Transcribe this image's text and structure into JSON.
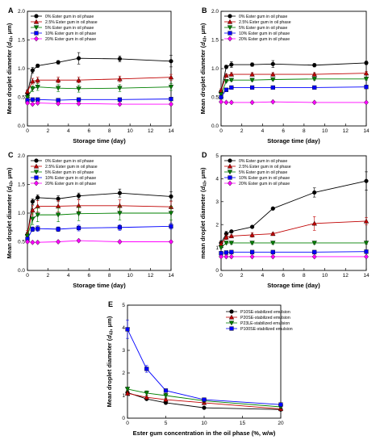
{
  "figure": {
    "panel_count": 5
  },
  "chart_data": [
    {
      "panel": "A",
      "type": "line",
      "xlabel": "Storage time (day)",
      "ylabel_main": "Mean droplet diameter (",
      "ylabel_sym": "d",
      "ylabel_sub": "43",
      "ylabel_tail": ", μm)",
      "xlim": [
        0,
        14
      ],
      "ylim": [
        0,
        2.0
      ],
      "xticks": [
        0,
        2,
        4,
        6,
        8,
        10,
        12,
        14
      ],
      "yticks": [
        0.0,
        0.5,
        1.0,
        1.5,
        2.0
      ],
      "ytick_labels": [
        "0.0",
        "0.5",
        "1.0",
        "1.5",
        "2.0"
      ],
      "legend_position": "top-left",
      "x": [
        0,
        0.5,
        1,
        3,
        5,
        9,
        14
      ],
      "series": [
        {
          "name": "0% Ester gum in oil phase",
          "color": "#000000",
          "marker": "circle",
          "values": [
            0.57,
            0.97,
            1.05,
            1.11,
            1.18,
            1.17,
            1.13
          ],
          "errors": [
            0.05,
            0.05,
            0.03,
            0.03,
            0.1,
            0.05,
            0.1
          ]
        },
        {
          "name": "2.5% Ester gum in oil phase",
          "color": "#c00000",
          "marker": "triangle-up",
          "values": [
            0.6,
            0.78,
            0.8,
            0.8,
            0.8,
            0.82,
            0.85
          ],
          "errors": [
            0.03,
            0.05,
            0.05,
            0.05,
            0.05,
            0.05,
            0.05
          ]
        },
        {
          "name": "5% Ester gum in oil phase",
          "color": "#008000",
          "marker": "triangle-down",
          "values": [
            0.5,
            0.65,
            0.68,
            0.66,
            0.65,
            0.66,
            0.68
          ],
          "errors": [
            0.03,
            0.05,
            0.06,
            0.06,
            0.06,
            0.06,
            0.06
          ]
        },
        {
          "name": "10% Ester gum in oil phase",
          "color": "#0000ff",
          "marker": "square",
          "values": [
            0.45,
            0.46,
            0.46,
            0.45,
            0.46,
            0.46,
            0.47
          ],
          "errors": [
            0.02,
            0.02,
            0.02,
            0.02,
            0.02,
            0.02,
            0.02
          ]
        },
        {
          "name": "20% Ester gum in oil phase",
          "color": "#ff00ff",
          "marker": "diamond",
          "values": [
            0.4,
            0.38,
            0.4,
            0.39,
            0.39,
            0.38,
            0.38
          ],
          "errors": [
            0.02,
            0.02,
            0.02,
            0.02,
            0.02,
            0.02,
            0.02
          ]
        }
      ]
    },
    {
      "panel": "B",
      "type": "line",
      "xlabel": "Storage time (day)",
      "ylabel_main": "Mean droplet diameter (",
      "ylabel_sym": "d",
      "ylabel_sub": "43",
      "ylabel_tail": ", μm)",
      "xlim": [
        0,
        14
      ],
      "ylim": [
        0,
        2.0
      ],
      "xticks": [
        0,
        2,
        4,
        6,
        8,
        10,
        12,
        14
      ],
      "yticks": [
        0.0,
        0.5,
        1.0,
        1.5,
        2.0
      ],
      "ytick_labels": [
        "0.0",
        "0.5",
        "1.0",
        "1.5",
        "2.0"
      ],
      "legend_position": "top-left",
      "x": [
        0,
        0.5,
        1,
        3,
        5,
        9,
        14
      ],
      "series": [
        {
          "name": "0% Ester gum in oil phase",
          "color": "#000000",
          "marker": "circle",
          "values": [
            0.6,
            1.03,
            1.07,
            1.07,
            1.08,
            1.06,
            1.1
          ],
          "errors": [
            0.03,
            0.03,
            0.05,
            0.03,
            0.06,
            0.03,
            0.03
          ]
        },
        {
          "name": "2.5% Ester gum in oil phase",
          "color": "#c00000",
          "marker": "triangle-up",
          "values": [
            0.62,
            0.88,
            0.9,
            0.9,
            0.9,
            0.9,
            0.92
          ],
          "errors": [
            0.03,
            0.03,
            0.03,
            0.03,
            0.03,
            0.03,
            0.03
          ]
        },
        {
          "name": "5% Ester gum in oil phase",
          "color": "#008000",
          "marker": "triangle-down",
          "values": [
            0.55,
            0.78,
            0.8,
            0.8,
            0.81,
            0.82,
            0.82
          ],
          "errors": [
            0.02,
            0.02,
            0.02,
            0.02,
            0.02,
            0.02,
            0.02
          ]
        },
        {
          "name": "10% Ester gum in oil phase",
          "color": "#0000ff",
          "marker": "square",
          "values": [
            0.5,
            0.63,
            0.67,
            0.67,
            0.67,
            0.67,
            0.68
          ],
          "errors": [
            0.02,
            0.02,
            0.02,
            0.02,
            0.02,
            0.02,
            0.02
          ]
        },
        {
          "name": "20% Ester gum in oil phase",
          "color": "#ff00ff",
          "marker": "diamond",
          "values": [
            0.42,
            0.41,
            0.41,
            0.41,
            0.42,
            0.41,
            0.41
          ],
          "errors": [
            0.01,
            0.01,
            0.01,
            0.01,
            0.01,
            0.01,
            0.01
          ]
        }
      ]
    },
    {
      "panel": "C",
      "type": "line",
      "xlabel": "Storage time (day)",
      "ylabel_main": "Mean droplet diameter (",
      "ylabel_sym": "d",
      "ylabel_sub": "43",
      "ylabel_tail": ", μm)",
      "xlim": [
        0,
        14
      ],
      "ylim": [
        0,
        2.0
      ],
      "xticks": [
        0,
        2,
        4,
        6,
        8,
        10,
        12,
        14
      ],
      "yticks": [
        0.0,
        0.5,
        1.0,
        1.5,
        2.0
      ],
      "ytick_labels": [
        "0.0",
        "0.5",
        "1.0",
        "1.5",
        "2.0"
      ],
      "legend_position": "top-left",
      "x": [
        0,
        0.5,
        1,
        3,
        5,
        9,
        14
      ],
      "series": [
        {
          "name": "0% Ester gum in oil phase",
          "color": "#000000",
          "marker": "circle",
          "values": [
            0.62,
            1.2,
            1.27,
            1.25,
            1.3,
            1.35,
            1.29
          ],
          "errors": [
            0.05,
            0.05,
            0.05,
            0.05,
            0.05,
            0.07,
            0.08
          ]
        },
        {
          "name": "2.5% Ester gum in oil phase",
          "color": "#c00000",
          "marker": "triangle-up",
          "values": [
            0.65,
            1.05,
            1.12,
            1.12,
            1.13,
            1.13,
            1.11
          ],
          "errors": [
            0.05,
            0.08,
            0.1,
            0.1,
            0.1,
            0.1,
            0.1
          ]
        },
        {
          "name": "5% Ester gum in oil phase",
          "color": "#008000",
          "marker": "triangle-down",
          "values": [
            0.6,
            0.9,
            0.97,
            0.97,
            0.99,
            1.0,
            1.0
          ],
          "errors": [
            0.05,
            0.1,
            0.12,
            0.12,
            0.12,
            0.12,
            0.12
          ]
        },
        {
          "name": "10% Ester gum in oil phase",
          "color": "#0000ff",
          "marker": "square",
          "values": [
            0.55,
            0.72,
            0.73,
            0.72,
            0.74,
            0.75,
            0.77
          ],
          "errors": [
            0.03,
            0.04,
            0.05,
            0.04,
            0.05,
            0.05,
            0.05
          ]
        },
        {
          "name": "20% Ester gum in oil phase",
          "color": "#ff00ff",
          "marker": "diamond",
          "values": [
            0.5,
            0.49,
            0.49,
            0.5,
            0.52,
            0.5,
            0.5
          ],
          "errors": [
            0.02,
            0.02,
            0.02,
            0.02,
            0.02,
            0.02,
            0.02
          ]
        }
      ]
    },
    {
      "panel": "D",
      "type": "line",
      "xlabel": "Storage time (day)",
      "ylabel_main": "mean droplet diameter (",
      "ylabel_sym": "d",
      "ylabel_sub": "43",
      "ylabel_tail": ", μm)",
      "xlim": [
        0,
        14
      ],
      "ylim": [
        0,
        5
      ],
      "xticks": [
        0,
        2,
        4,
        6,
        8,
        10,
        12,
        14
      ],
      "yticks": [
        0,
        1,
        2,
        3,
        4,
        5
      ],
      "ytick_labels": [
        "0",
        "1",
        "2",
        "3",
        "4",
        "5"
      ],
      "legend_position": "top-left",
      "x": [
        0,
        0.5,
        1,
        3,
        5,
        9,
        14
      ],
      "series": [
        {
          "name": "0% Ester gum in oil phase",
          "color": "#000000",
          "marker": "circle",
          "values": [
            1.2,
            1.6,
            1.7,
            1.9,
            2.7,
            3.4,
            3.9
          ],
          "errors": [
            0.1,
            0.1,
            0.05,
            0.05,
            0.05,
            0.2,
            0.4
          ]
        },
        {
          "name": "2.5% Ester gum in oil phase",
          "color": "#c00000",
          "marker": "triangle-up",
          "values": [
            1.15,
            1.45,
            1.5,
            1.55,
            1.6,
            2.05,
            2.15
          ],
          "errors": [
            0.1,
            0.1,
            0.05,
            0.1,
            0.05,
            0.3,
            0.15
          ]
        },
        {
          "name": "5% Ester gum in oil phase",
          "color": "#008000",
          "marker": "triangle-down",
          "values": [
            1.0,
            1.2,
            1.2,
            1.2,
            1.2,
            1.2,
            1.2
          ],
          "errors": [
            0.05,
            0.05,
            0.05,
            0.05,
            0.05,
            0.05,
            0.05
          ]
        },
        {
          "name": "10% Ester gum in oil phase",
          "color": "#0000ff",
          "marker": "square",
          "values": [
            0.75,
            0.78,
            0.8,
            0.8,
            0.8,
            0.8,
            0.82
          ],
          "errors": [
            0.03,
            0.03,
            0.03,
            0.03,
            0.03,
            0.03,
            0.03
          ]
        },
        {
          "name": "20% Ester gum in oil phase",
          "color": "#ff00ff",
          "marker": "diamond",
          "values": [
            0.6,
            0.6,
            0.6,
            0.6,
            0.6,
            0.6,
            0.6
          ],
          "errors": [
            0.02,
            0.02,
            0.02,
            0.02,
            0.02,
            0.02,
            0.02
          ]
        }
      ]
    },
    {
      "panel": "E",
      "type": "line",
      "xlabel": "Ester gum concentration in the oil phase (%, w/w)",
      "ylabel_main": "Mean droplet diameter (",
      "ylabel_sym": "d",
      "ylabel_sub": "43",
      "ylabel_tail": ", μm)",
      "xlim": [
        0,
        20
      ],
      "ylim": [
        0,
        5
      ],
      "xticks": [
        0,
        5,
        10,
        15,
        20
      ],
      "yticks": [
        0,
        1,
        2,
        3,
        4,
        5
      ],
      "ytick_labels": [
        "0",
        "1",
        "2",
        "3",
        "4",
        "5"
      ],
      "legend_position": "top-right",
      "x": [
        0,
        2.5,
        5,
        10,
        20
      ],
      "series": [
        {
          "name": "P10SE-stabilized emulsion",
          "color": "#000000",
          "marker": "circle",
          "values": [
            1.13,
            0.85,
            0.68,
            0.46,
            0.38
          ],
          "errors": [
            0.1,
            0.05,
            0.05,
            0.03,
            0.03
          ]
        },
        {
          "name": "P20SE-stabilized emulsion",
          "color": "#c00000",
          "marker": "triangle-up",
          "values": [
            1.1,
            0.92,
            0.82,
            0.68,
            0.41
          ],
          "errors": [
            0.08,
            0.05,
            0.05,
            0.03,
            0.03
          ]
        },
        {
          "name": "P23LE-stabilized emulsion",
          "color": "#008000",
          "marker": "triangle-down",
          "values": [
            1.29,
            1.11,
            1.0,
            0.77,
            0.5
          ],
          "errors": [
            0.08,
            0.1,
            0.1,
            0.05,
            0.03
          ]
        },
        {
          "name": "P100SE-stabilized emulsion",
          "color": "#0000ff",
          "marker": "square",
          "values": [
            3.93,
            2.18,
            1.22,
            0.82,
            0.6
          ],
          "errors": [
            0.4,
            0.15,
            0.05,
            0.03,
            0.03
          ]
        }
      ]
    }
  ]
}
